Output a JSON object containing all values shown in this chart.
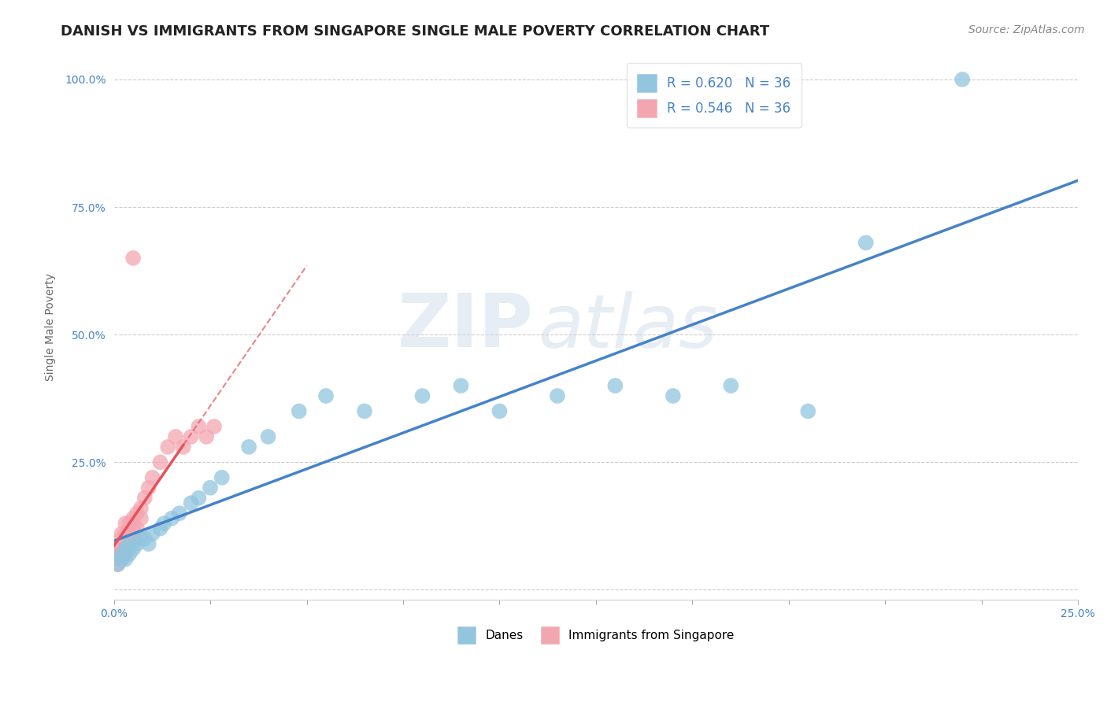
{
  "title": "DANISH VS IMMIGRANTS FROM SINGAPORE SINGLE MALE POVERTY CORRELATION CHART",
  "source": "Source: ZipAtlas.com",
  "ylabel": "Single Male Poverty",
  "watermark_zip": "ZIP",
  "watermark_atlas": "atlas",
  "xlim": [
    0.0,
    0.25
  ],
  "ylim": [
    -0.02,
    1.05
  ],
  "xticks": [
    0.0,
    0.025,
    0.05,
    0.075,
    0.1,
    0.125,
    0.15,
    0.175,
    0.2,
    0.225,
    0.25
  ],
  "xtick_labels": [
    "0.0%",
    "",
    "",
    "",
    "",
    "",
    "",
    "",
    "",
    "",
    "25.0%"
  ],
  "yticks": [
    0.0,
    0.25,
    0.5,
    0.75,
    1.0
  ],
  "ytick_labels": [
    "",
    "25.0%",
    "50.0%",
    "75.0%",
    "100.0%"
  ],
  "danes_color": "#92C5DE",
  "immigrants_color": "#F4A6B0",
  "trend_danes_color": "#4682C8",
  "trend_immigrants_color": "#E8505A",
  "danes_R": 0.62,
  "danes_N": 36,
  "immigrants_R": 0.546,
  "immigrants_N": 36,
  "legend_label_danes": "R = 0.620   N = 36",
  "legend_label_immigrants": "R = 0.546   N = 36",
  "legend_bottom_danes": "Danes",
  "legend_bottom_immigrants": "Immigrants from Singapore",
  "danes_x": [
    0.001,
    0.002,
    0.002,
    0.003,
    0.003,
    0.004,
    0.004,
    0.005,
    0.006,
    0.007,
    0.008,
    0.009,
    0.01,
    0.012,
    0.013,
    0.015,
    0.017,
    0.02,
    0.022,
    0.025,
    0.028,
    0.035,
    0.04,
    0.048,
    0.055,
    0.065,
    0.08,
    0.09,
    0.1,
    0.115,
    0.13,
    0.145,
    0.16,
    0.18,
    0.195,
    0.22
  ],
  "danes_y": [
    0.05,
    0.06,
    0.07,
    0.06,
    0.08,
    0.07,
    0.09,
    0.08,
    0.09,
    0.1,
    0.1,
    0.09,
    0.11,
    0.12,
    0.13,
    0.14,
    0.15,
    0.17,
    0.18,
    0.2,
    0.22,
    0.28,
    0.3,
    0.35,
    0.38,
    0.35,
    0.38,
    0.4,
    0.35,
    0.38,
    0.4,
    0.38,
    0.4,
    0.35,
    0.68,
    1.0
  ],
  "immigrants_x": [
    0.001,
    0.001,
    0.001,
    0.001,
    0.002,
    0.002,
    0.002,
    0.002,
    0.002,
    0.003,
    0.003,
    0.003,
    0.003,
    0.003,
    0.004,
    0.004,
    0.004,
    0.005,
    0.005,
    0.005,
    0.006,
    0.006,
    0.007,
    0.007,
    0.008,
    0.009,
    0.01,
    0.012,
    0.014,
    0.016,
    0.018,
    0.02,
    0.022,
    0.024,
    0.026,
    0.005
  ],
  "immigrants_y": [
    0.05,
    0.06,
    0.07,
    0.08,
    0.06,
    0.07,
    0.08,
    0.1,
    0.11,
    0.07,
    0.08,
    0.09,
    0.11,
    0.13,
    0.09,
    0.11,
    0.13,
    0.1,
    0.12,
    0.14,
    0.12,
    0.15,
    0.14,
    0.16,
    0.18,
    0.2,
    0.22,
    0.25,
    0.28,
    0.3,
    0.28,
    0.3,
    0.32,
    0.3,
    0.32,
    0.65
  ],
  "imm_trend_x_start": 0.0,
  "imm_trend_x_end": 0.026,
  "imm_trend_x_dash_end": 0.05,
  "title_fontsize": 13,
  "label_fontsize": 10,
  "tick_fontsize": 10,
  "legend_fontsize": 12,
  "source_fontsize": 10,
  "background_color": "#ffffff",
  "grid_color": "#cccccc",
  "title_color": "#222222",
  "axis_label_color": "#666666",
  "tick_color": "#4682C8",
  "watermark_color": "#c8d8e8",
  "watermark_alpha": 0.45
}
